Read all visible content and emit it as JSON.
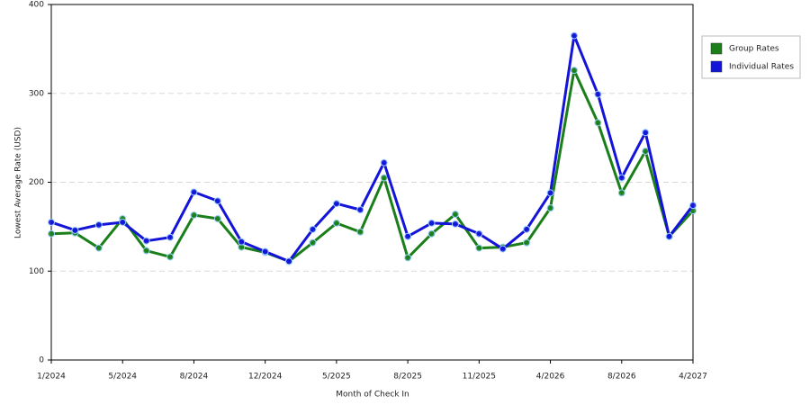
{
  "chart_data": {
    "type": "line",
    "x_label": "Month of Check In",
    "y_label": "Lowest Average Rate (USD)",
    "categories": [
      "1/2024",
      null,
      null,
      "5/2024",
      null,
      null,
      "8/2024",
      null,
      null,
      "12/2024",
      null,
      null,
      "5/2025",
      null,
      null,
      "8/2025",
      null,
      null,
      "11/2025",
      null,
      null,
      "4/2026",
      null,
      null,
      "8/2026",
      null,
      null,
      "4/2027"
    ],
    "series": [
      {
        "name": "Group Rates",
        "color": "#1a7f1a",
        "values": [
          142,
          143,
          126,
          159,
          123,
          116,
          163,
          159,
          127,
          121,
          111,
          132,
          154,
          144,
          205,
          115,
          142,
          164,
          126,
          127,
          132,
          171,
          326,
          267,
          188,
          235,
          139,
          168
        ]
      },
      {
        "name": "Individual Rates",
        "color": "#1414d8",
        "values": [
          155,
          146,
          152,
          155,
          134,
          138,
          189,
          179,
          133,
          122,
          111,
          147,
          176,
          169,
          222,
          139,
          154,
          153,
          142,
          125,
          147,
          188,
          365,
          299,
          205,
          256,
          139,
          174
        ]
      }
    ],
    "ylim": [
      0,
      400
    ],
    "yticks": [
      0,
      100,
      200,
      300,
      400
    ],
    "grid": true,
    "legend": "right"
  }
}
